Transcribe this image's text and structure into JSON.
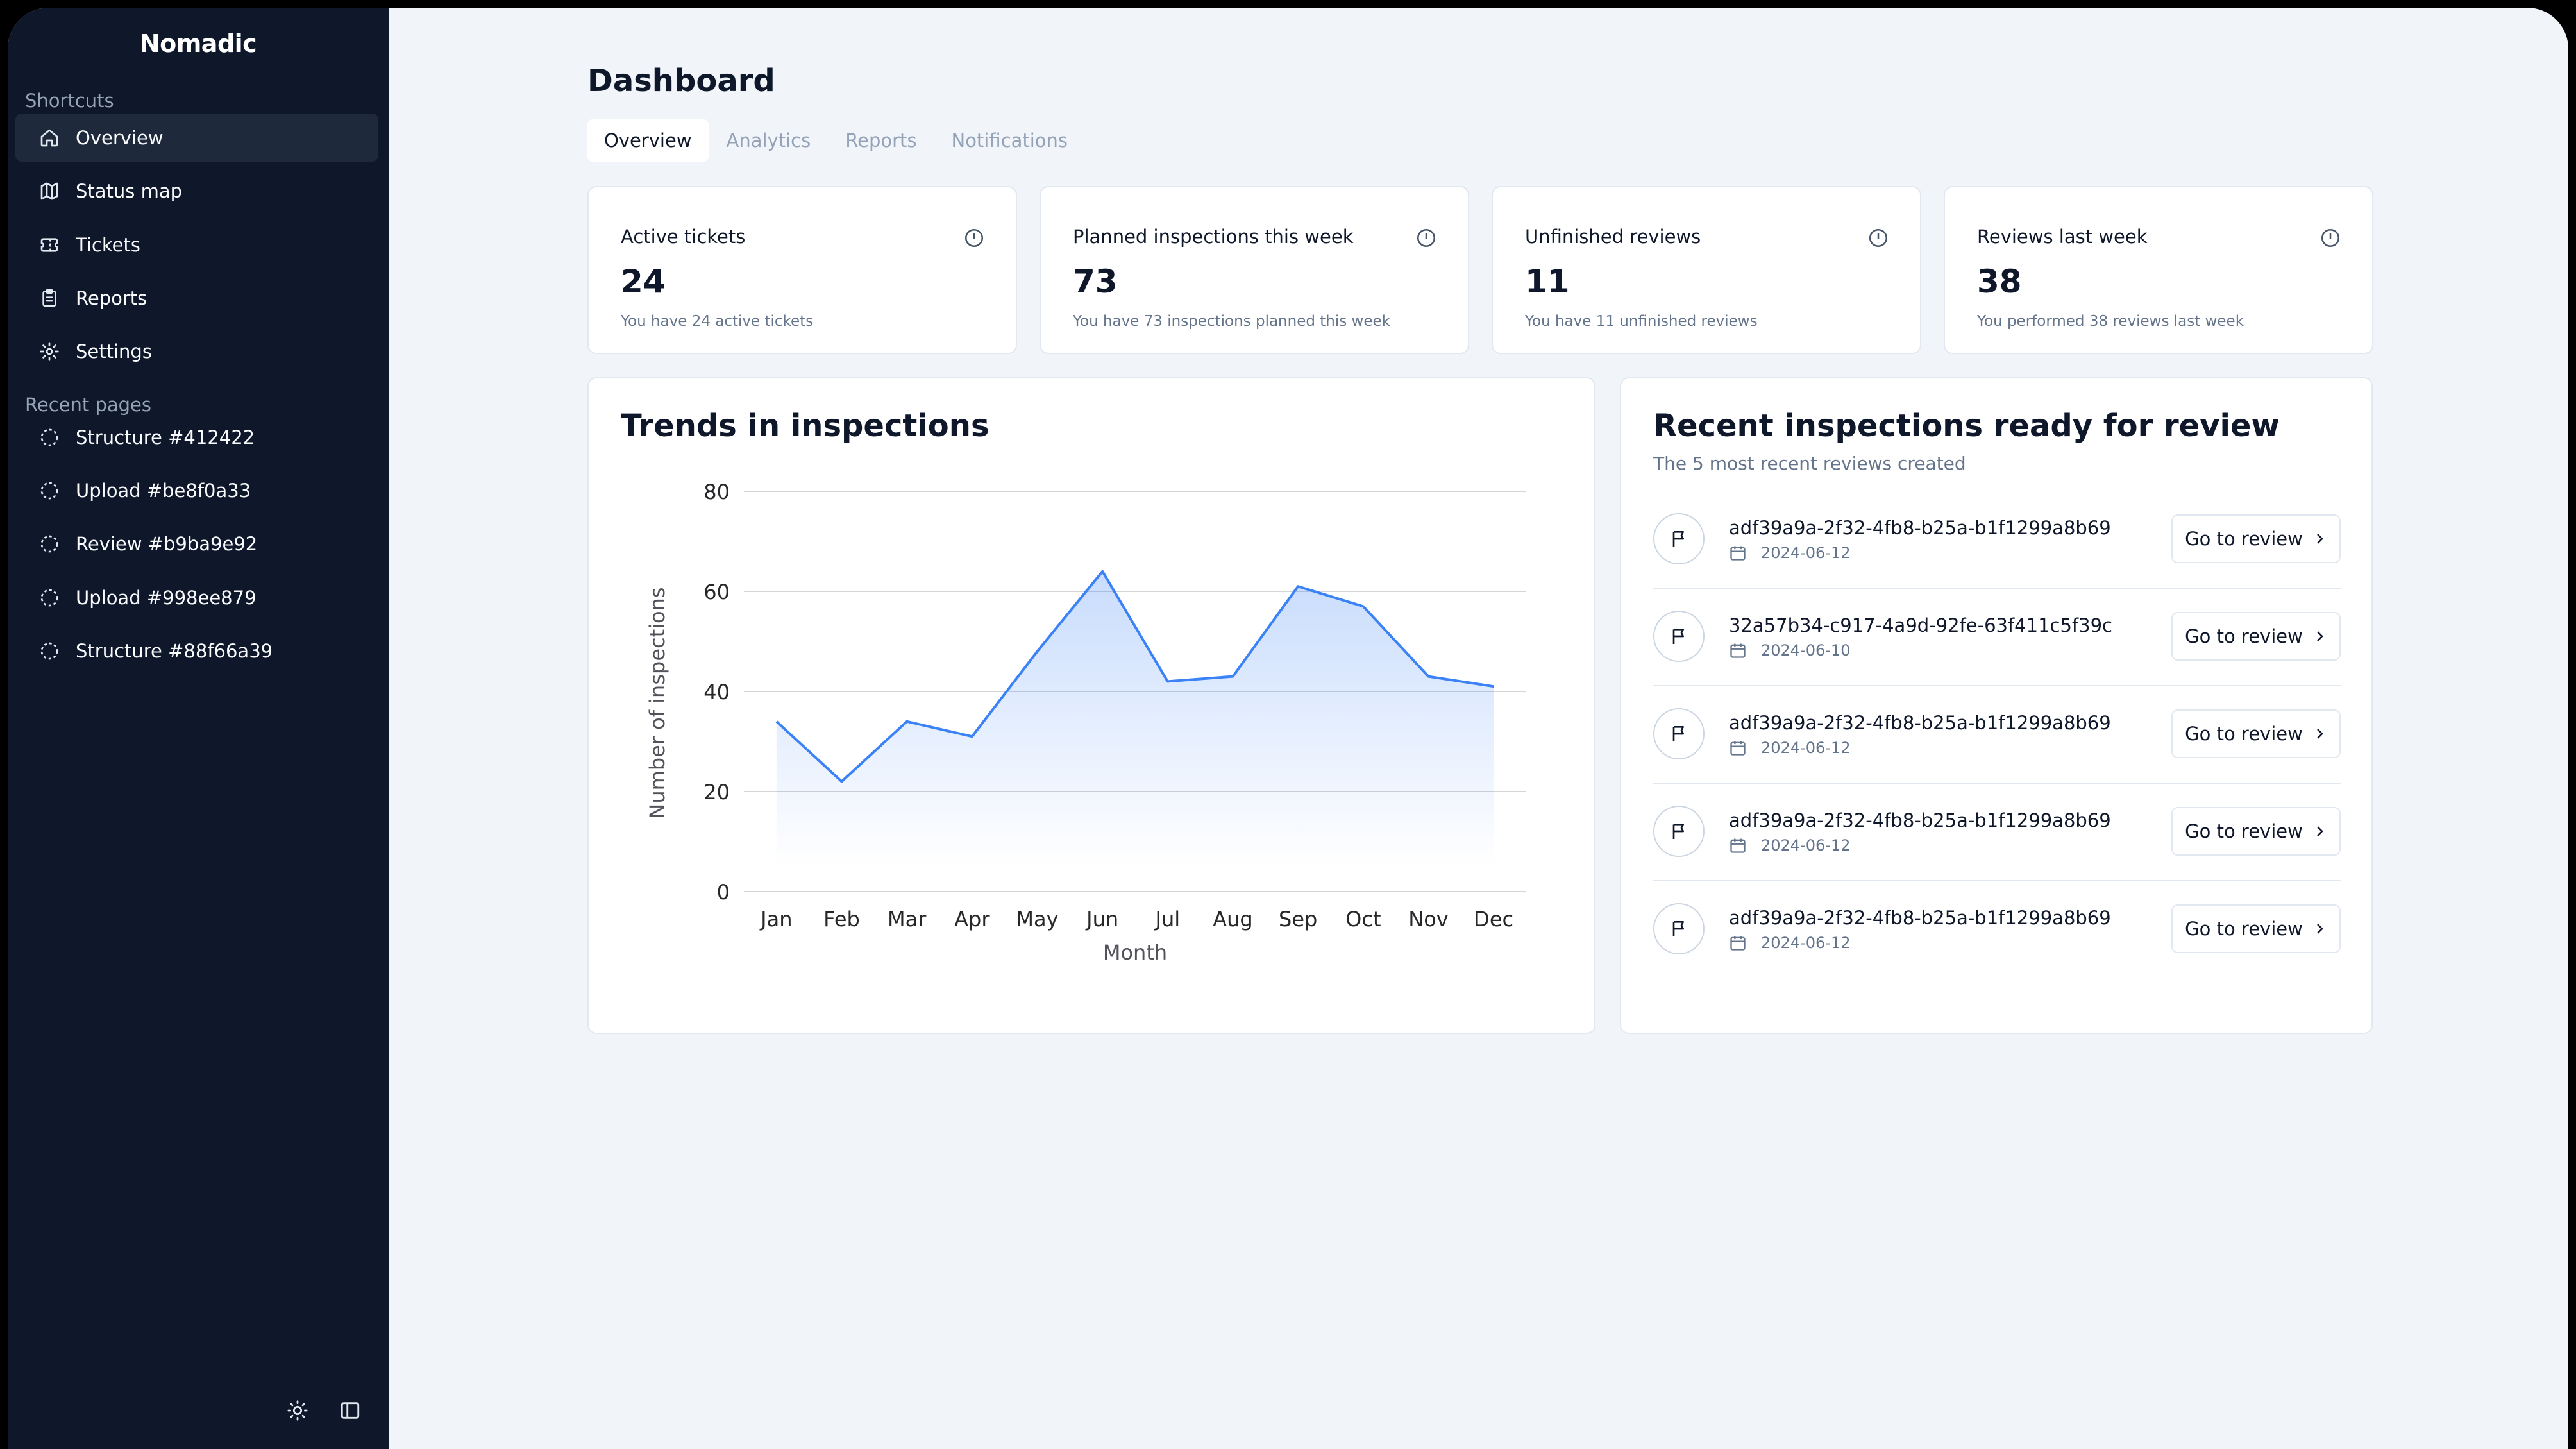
{
  "sidebar": {
    "brand": "Nomadic",
    "shortcuts_label": "Shortcuts",
    "shortcuts": [
      {
        "label": "Overview",
        "icon": "home-icon",
        "active": true
      },
      {
        "label": "Status map",
        "icon": "map-icon"
      },
      {
        "label": "Tickets",
        "icon": "ticket-icon"
      },
      {
        "label": "Reports",
        "icon": "clipboard-icon"
      },
      {
        "label": "Settings",
        "icon": "gear-icon"
      }
    ],
    "recent_label": "Recent pages",
    "recent": [
      {
        "label": "Structure #412422",
        "icon": "loader-icon"
      },
      {
        "label": "Upload #be8f0a33",
        "icon": "loader-icon"
      },
      {
        "label": "Review #b9ba9e92",
        "icon": "loader-icon"
      },
      {
        "label": "Upload #998ee879",
        "icon": "loader-icon"
      },
      {
        "label": "Structure #88f66a39",
        "icon": "loader-icon"
      }
    ],
    "bottom_icons": [
      "sun-icon",
      "sidebar-toggle-icon"
    ]
  },
  "header": {
    "title": "Dashboard",
    "tabs": [
      "Overview",
      "Analytics",
      "Reports",
      "Notifications"
    ],
    "active_tab": "Overview"
  },
  "stats": [
    {
      "label": "Active tickets",
      "value": "24",
      "sub": "You have 24 active tickets"
    },
    {
      "label": "Planned inspections this week",
      "value": "73",
      "sub": "You have 73 inspections planned this week"
    },
    {
      "label": "Unfinished reviews",
      "value": "11",
      "sub": "You have 11 unfinished reviews"
    },
    {
      "label": "Reviews last week",
      "value": "38",
      "sub": "You performed 38 reviews last week"
    }
  ],
  "trends": {
    "title": "Trends in inspections"
  },
  "chart_data": {
    "type": "area",
    "title": "Trends in inspections",
    "categories": [
      "Jan",
      "Feb",
      "Mar",
      "Apr",
      "May",
      "Jun",
      "Jul",
      "Aug",
      "Sep",
      "Oct",
      "Nov",
      "Dec"
    ],
    "values": [
      34,
      22,
      34,
      31,
      48,
      64,
      42,
      43,
      61,
      57,
      43,
      41
    ],
    "xlabel": "Month",
    "ylabel": "Number of inspections",
    "ylim": [
      0,
      80
    ],
    "yticks": [
      "0",
      "20",
      "40",
      "60",
      "80"
    ],
    "grid": true,
    "color": "#3b82f6"
  },
  "reviews": {
    "title": "Recent inspections ready for review",
    "subtitle": "The 5 most recent reviews created",
    "button_label": "Go to review",
    "items": [
      {
        "id": "adf39a9a-2f32-4fb8-b25a-b1f1299a8b69",
        "date": "2024-06-12"
      },
      {
        "id": "32a57b34-c917-4a9d-92fe-63f411c5f39c",
        "date": "2024-06-10"
      },
      {
        "id": "adf39a9a-2f32-4fb8-b25a-b1f1299a8b69",
        "date": "2024-06-12"
      },
      {
        "id": "adf39a9a-2f32-4fb8-b25a-b1f1299a8b69",
        "date": "2024-06-12"
      },
      {
        "id": "adf39a9a-2f32-4fb8-b25a-b1f1299a8b69",
        "date": "2024-06-12"
      }
    ]
  }
}
